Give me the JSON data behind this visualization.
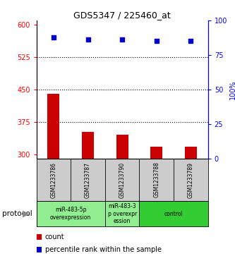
{
  "title": "GDS5347 / 225460_at",
  "samples": [
    "GSM1233786",
    "GSM1233787",
    "GSM1233790",
    "GSM1233788",
    "GSM1233789"
  ],
  "counts": [
    440,
    352,
    345,
    318,
    318
  ],
  "percentiles": [
    88,
    86,
    86,
    85,
    85
  ],
  "ylim_left": [
    290,
    610
  ],
  "ylim_right": [
    0,
    100
  ],
  "yticks_left": [
    300,
    375,
    450,
    525,
    600
  ],
  "yticks_right": [
    0,
    25,
    50,
    75,
    100
  ],
  "hlines": [
    375,
    450,
    525
  ],
  "bar_color": "#cc0000",
  "scatter_color": "#0000cc",
  "protocol_groups": [
    {
      "label": "miR-483-5p\noverexpression",
      "color": "#90ee90",
      "indices": [
        0,
        1
      ]
    },
    {
      "label": "miR-483-3\np overexpr\nession",
      "color": "#90ee90",
      "indices": [
        2
      ]
    },
    {
      "label": "control",
      "color": "#33cc33",
      "indices": [
        3,
        4
      ]
    }
  ],
  "protocol_label": "protocol",
  "legend_count_label": "count",
  "legend_percentile_label": "percentile rank within the sample",
  "background_color": "#ffffff",
  "plot_bg_color": "#ffffff",
  "sample_bg_color": "#cccccc",
  "bar_width": 0.35
}
